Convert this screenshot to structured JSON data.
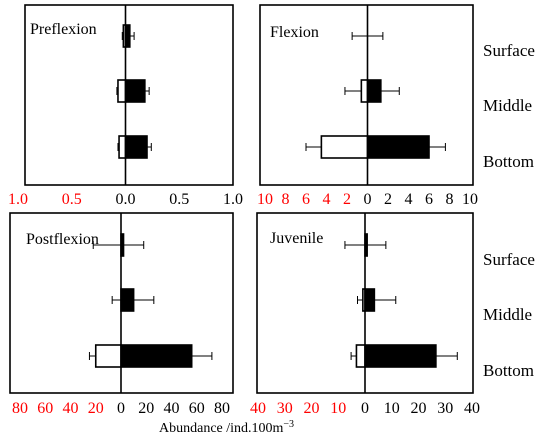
{
  "chart_data": [
    {
      "type": "bar",
      "title": "Preflexion",
      "categories": [
        "Surface",
        "Middle",
        "Bottom"
      ],
      "xlim": [
        -1.0,
        1.0
      ],
      "xticks": [
        {
          "value": -1.0,
          "label": "1.0",
          "color": "red"
        },
        {
          "value": -0.5,
          "label": "0.5",
          "color": "red"
        },
        {
          "value": 0.0,
          "label": "0.0",
          "color": "black"
        },
        {
          "value": 0.5,
          "label": "0.5",
          "color": "black"
        },
        {
          "value": 1.0,
          "label": "1.0",
          "color": "black"
        }
      ],
      "series": [
        {
          "fill": "white",
          "values": [
            -0.02,
            -0.07,
            -0.06
          ],
          "errors": [
            0.01,
            0.01,
            0.01
          ]
        },
        {
          "fill": "black",
          "values": [
            0.04,
            0.18,
            0.2
          ],
          "errors": [
            0.04,
            0.04,
            0.04
          ]
        }
      ]
    },
    {
      "type": "bar",
      "title": "Flexion",
      "categories": [
        "Surface",
        "Middle",
        "Bottom"
      ],
      "xlim": [
        -10,
        10
      ],
      "xticks": [
        {
          "value": -10,
          "label": "10",
          "color": "red"
        },
        {
          "value": -8,
          "label": "8",
          "color": "red"
        },
        {
          "value": -6,
          "label": "6",
          "color": "red"
        },
        {
          "value": -4,
          "label": "4",
          "color": "red"
        },
        {
          "value": -2,
          "label": "2",
          "color": "red"
        },
        {
          "value": 0,
          "label": "0",
          "color": "black"
        },
        {
          "value": 2,
          "label": "2",
          "color": "black"
        },
        {
          "value": 4,
          "label": "4",
          "color": "black"
        },
        {
          "value": 6,
          "label": "6",
          "color": "black"
        },
        {
          "value": 8,
          "label": "8",
          "color": "black"
        },
        {
          "value": 10,
          "label": "10",
          "color": "black"
        }
      ],
      "series": [
        {
          "fill": "white",
          "values": [
            0,
            -0.6,
            -4.5
          ],
          "errors": [
            1.5,
            1.6,
            1.5
          ]
        },
        {
          "fill": "black",
          "values": [
            0,
            1.3,
            6.0
          ],
          "errors": [
            1.5,
            1.8,
            1.6
          ]
        }
      ]
    },
    {
      "type": "bar",
      "title": "Postflexion",
      "categories": [
        "Surface",
        "Middle",
        "Bottom"
      ],
      "xlim": [
        -80,
        80
      ],
      "xticks": [
        {
          "value": -80,
          "label": "80",
          "color": "red"
        },
        {
          "value": -60,
          "label": "60",
          "color": "red"
        },
        {
          "value": -40,
          "label": "40",
          "color": "red"
        },
        {
          "value": -20,
          "label": "20",
          "color": "red"
        },
        {
          "value": 0,
          "label": "0",
          "color": "black"
        },
        {
          "value": 20,
          "label": "20",
          "color": "black"
        },
        {
          "value": 40,
          "label": "40",
          "color": "black"
        },
        {
          "value": 60,
          "label": "60",
          "color": "black"
        },
        {
          "value": 80,
          "label": "80",
          "color": "black"
        }
      ],
      "series": [
        {
          "fill": "white",
          "values": [
            0,
            0,
            -20
          ],
          "errors": [
            22,
            7,
            5
          ]
        },
        {
          "fill": "black",
          "values": [
            2,
            10,
            56
          ],
          "errors": [
            16,
            16,
            16
          ]
        }
      ]
    },
    {
      "type": "bar",
      "title": "Juvenile",
      "categories": [
        "Surface",
        "Middle",
        "Bottom"
      ],
      "xlim": [
        -40,
        40
      ],
      "xticks": [
        {
          "value": -40,
          "label": "40",
          "color": "red"
        },
        {
          "value": -30,
          "label": "30",
          "color": "red"
        },
        {
          "value": -20,
          "label": "20",
          "color": "red"
        },
        {
          "value": -10,
          "label": "10",
          "color": "red"
        },
        {
          "value": 0,
          "label": "0",
          "color": "black"
        },
        {
          "value": 10,
          "label": "10",
          "color": "black"
        },
        {
          "value": 20,
          "label": "20",
          "color": "black"
        },
        {
          "value": 30,
          "label": "30",
          "color": "black"
        },
        {
          "value": 40,
          "label": "40",
          "color": "black"
        }
      ],
      "series": [
        {
          "fill": "white",
          "values": [
            0,
            -0.8,
            -3.2
          ],
          "errors": [
            7.5,
            2,
            2
          ]
        },
        {
          "fill": "black",
          "values": [
            0.8,
            3.5,
            26.5
          ],
          "errors": [
            7.0,
            8,
            8
          ]
        }
      ]
    }
  ],
  "xlabel": "Abundance /ind.100m",
  "xlabel_sup": "−3",
  "colors": {
    "negative_tick": "#ff0000",
    "positive_tick": "#000000",
    "bar_fill": "#000000",
    "bar_open": "#ffffff"
  }
}
